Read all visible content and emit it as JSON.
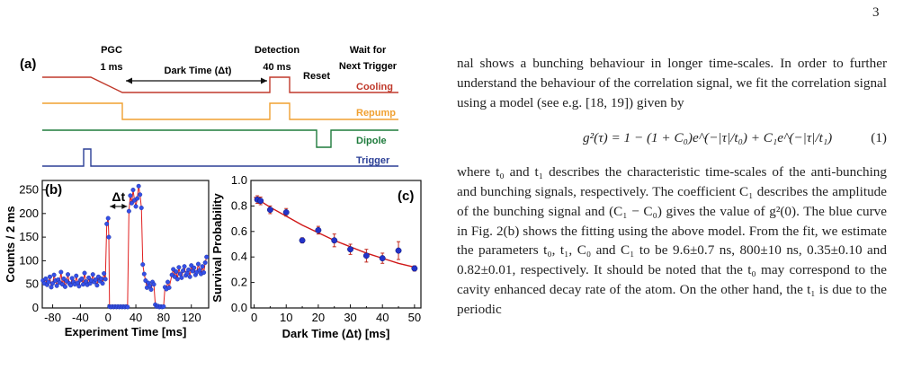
{
  "page_number": "3",
  "figure": {
    "panel_a": {
      "label": "(a)",
      "phases": {
        "pgc_title": "PGC",
        "pgc_duration": "1 ms",
        "dark_time": "Dark Time (Δt)",
        "detection_title": "Detection",
        "detection_duration": "40 ms",
        "reset": "Reset",
        "wait_line1": "Wait for",
        "wait_line2": "Next Trigger"
      },
      "channels": [
        {
          "name": "Cooling",
          "color": "#c0392b"
        },
        {
          "name": "Repump",
          "color": "#f0a030"
        },
        {
          "name": "Dipole",
          "color": "#1e7b3c"
        },
        {
          "name": "Trigger",
          "color": "#2b3f96"
        }
      ]
    }
  },
  "chart_data": [
    {
      "type": "line",
      "panel_label": "(b)",
      "annotation": "Δt",
      "xlabel": "Experiment Time [ms]",
      "ylabel": "Counts / 2 ms",
      "xlim": [
        -95,
        145
      ],
      "ylim": [
        0,
        270
      ],
      "xticks": [
        -80,
        -40,
        0,
        40,
        80,
        120
      ],
      "yticks": [
        0,
        50,
        100,
        150,
        200,
        250
      ],
      "series": [
        {
          "values": [
            [
              -94,
              58
            ],
            [
              -92,
              52
            ],
            [
              -90,
              62
            ],
            [
              -88,
              49
            ],
            [
              -86,
              55
            ],
            [
              -84,
              66
            ],
            [
              -82,
              44
            ],
            [
              -80,
              52
            ],
            [
              -78,
              70
            ],
            [
              -76,
              58
            ],
            [
              -74,
              47
            ],
            [
              -72,
              60
            ],
            [
              -70,
              54
            ],
            [
              -68,
              76
            ],
            [
              -66,
              50
            ],
            [
              -64,
              62
            ],
            [
              -62,
              45
            ],
            [
              -60,
              57
            ],
            [
              -58,
              71
            ],
            [
              -56,
              52
            ],
            [
              -54,
              48
            ],
            [
              -52,
              63
            ],
            [
              -50,
              55
            ],
            [
              -48,
              50
            ],
            [
              -46,
              68
            ],
            [
              -44,
              53
            ],
            [
              -42,
              46
            ],
            [
              -40,
              59
            ],
            [
              -38,
              62
            ],
            [
              -36,
              50
            ],
            [
              -34,
              74
            ],
            [
              -32,
              56
            ],
            [
              -30,
              49
            ],
            [
              -28,
              64
            ],
            [
              -26,
              52
            ],
            [
              -24,
              58
            ],
            [
              -22,
              71
            ],
            [
              -20,
              55
            ],
            [
              -18,
              60
            ],
            [
              -16,
              48
            ],
            [
              -14,
              66
            ],
            [
              -12,
              57
            ],
            [
              -10,
              62
            ],
            [
              -8,
              52
            ],
            [
              -6,
              73
            ],
            [
              -4,
              61
            ],
            [
              -2,
              178
            ],
            [
              0,
              190
            ],
            [
              1,
              150
            ],
            [
              2,
              3
            ],
            [
              4,
              2
            ],
            [
              6,
              3
            ],
            [
              8,
              2
            ],
            [
              10,
              3
            ],
            [
              12,
              2
            ],
            [
              14,
              3
            ],
            [
              16,
              2
            ],
            [
              18,
              3
            ],
            [
              20,
              2
            ],
            [
              22,
              3
            ],
            [
              24,
              2
            ],
            [
              26,
              3
            ],
            [
              28,
              2
            ],
            [
              30,
              205
            ],
            [
              32,
              238
            ],
            [
              34,
              222
            ],
            [
              36,
              250
            ],
            [
              38,
              228
            ],
            [
              40,
              215
            ],
            [
              42,
              232
            ],
            [
              44,
              258
            ],
            [
              46,
              240
            ],
            [
              48,
              212
            ],
            [
              50,
              92
            ],
            [
              52,
              72
            ],
            [
              54,
              58
            ],
            [
              56,
              43
            ],
            [
              58,
              53
            ],
            [
              60,
              47
            ],
            [
              62,
              39
            ],
            [
              64,
              55
            ],
            [
              66,
              50
            ],
            [
              68,
              7
            ],
            [
              70,
              3
            ],
            [
              72,
              4
            ],
            [
              74,
              2
            ],
            [
              76,
              3
            ],
            [
              78,
              2
            ],
            [
              80,
              3
            ],
            [
              82,
              44
            ],
            [
              84,
              40
            ],
            [
              86,
              55
            ],
            [
              88,
              43
            ],
            [
              92,
              70
            ],
            [
              94,
              82
            ],
            [
              96,
              66
            ],
            [
              98,
              77
            ],
            [
              100,
              61
            ],
            [
              102,
              86
            ],
            [
              104,
              72
            ],
            [
              106,
              64
            ],
            [
              108,
              79
            ],
            [
              110,
              88
            ],
            [
              112,
              69
            ],
            [
              114,
              74
            ],
            [
              116,
              81
            ],
            [
              118,
              66
            ],
            [
              120,
              90
            ],
            [
              122,
              78
            ],
            [
              124,
              85
            ],
            [
              126,
              70
            ],
            [
              128,
              76
            ],
            [
              130,
              93
            ],
            [
              132,
              80
            ],
            [
              134,
              72
            ],
            [
              136,
              88
            ],
            [
              138,
              75
            ],
            [
              140,
              96
            ],
            [
              142,
              108
            ]
          ]
        }
      ]
    },
    {
      "type": "scatter",
      "panel_label": "(c)",
      "xlabel": "Dark Time (Δt) [ms]",
      "ylabel": "Survival Probability",
      "xlim": [
        -1,
        52
      ],
      "ylim": [
        0.0,
        1.0
      ],
      "xticks": [
        0,
        5,
        10,
        15,
        20,
        25,
        30,
        35,
        40,
        45,
        50
      ],
      "yticks": [
        "0.0",
        "0.2",
        "0.4",
        "0.6",
        "0.8",
        "1.0"
      ],
      "series": [
        {
          "x": [
            1,
            2,
            5,
            10,
            15,
            20,
            25,
            30,
            35,
            40,
            45,
            50
          ],
          "y": [
            0.85,
            0.84,
            0.77,
            0.75,
            0.53,
            0.61,
            0.53,
            0.46,
            0.41,
            0.39,
            0.45,
            0.31
          ],
          "err": [
            0.03,
            0.03,
            0.03,
            0.03,
            0.02,
            0.03,
            0.05,
            0.04,
            0.05,
            0.04,
            0.07,
            0.02
          ],
          "color": "#2433c9"
        }
      ],
      "fit": {
        "x": [
          0,
          5,
          10,
          15,
          20,
          25,
          30,
          35,
          40,
          45,
          50
        ],
        "y": [
          0.87,
          0.79,
          0.72,
          0.65,
          0.59,
          0.53,
          0.48,
          0.43,
          0.39,
          0.35,
          0.32
        ],
        "color": "#d01818"
      }
    }
  ],
  "text": {
    "p1": "nal shows a bunching behaviour in longer time-scales. In order to further understand the behaviour of the correlation signal, we fit the correlation signal using a model (see e.g. [18, 19]) given by",
    "equation": "g²(τ) = 1 − (1 + C₀)e^(−|τ|/t₀) + C₁e^(−|τ|/t₁)",
    "equation_number": "(1)",
    "p2": "where t₀ and t₁ describes the characteristic time-scales of the anti-bunching and bunching signals, respectively. The coefficient C₁ describes the amplitude of the bunching signal and (C₁ − C₀) gives the value of g²(0). The blue curve in Fig. 2(b) shows the fitting using the above model. From the fit, we estimate the parameters t₀, t₁, C₀ and C₁ to be 9.6±0.7 ns, 800±10 ns, 0.35±0.10 and 0.82±0.01, respectively. It should be noted that the t₀ may correspond to the cavity enhanced decay rate of the atom. On the other hand, the t₁ is due to the periodic"
  }
}
